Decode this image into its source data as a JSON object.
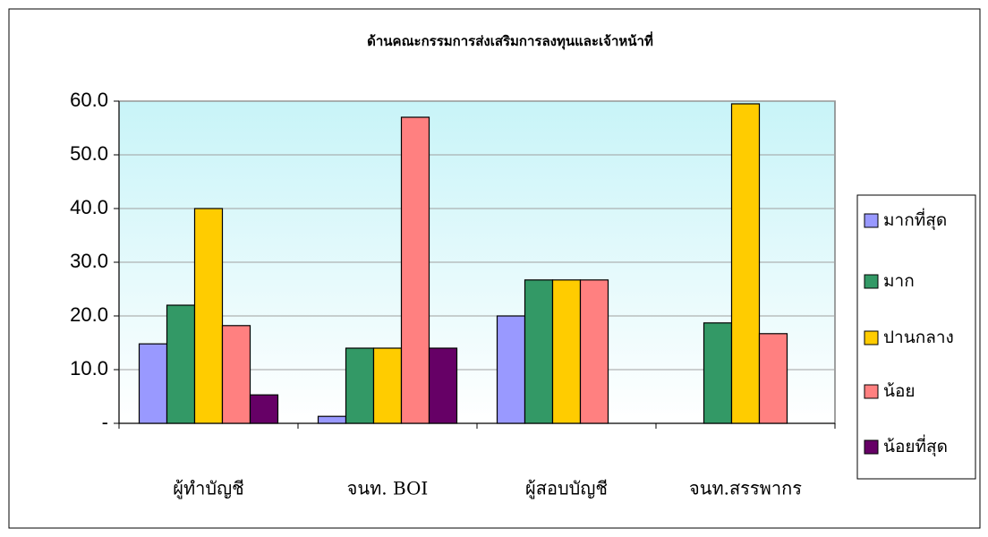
{
  "chart_data": {
    "type": "bar",
    "title": "ด้านคณะกรรมการส่งเสริมการลงทุนและเจ้าหน้าที่",
    "categories": [
      "ผู้ทำบัญชี",
      "จนท. BOI",
      "ผู้สอบบัญชี",
      "จนท.สรรพากร"
    ],
    "series": [
      {
        "name": "มากที่สุด",
        "color": "#9999ff",
        "values": [
          14.8,
          1.3,
          20.0,
          0
        ]
      },
      {
        "name": "มาก",
        "color": "#339966",
        "values": [
          22.0,
          14.0,
          26.7,
          18.7
        ]
      },
      {
        "name": "ปานกลาง",
        "color": "#ffcc00",
        "values": [
          40.0,
          14.0,
          26.7,
          59.5
        ]
      },
      {
        "name": "น้อย",
        "color": "#ff8080",
        "values": [
          18.2,
          57.0,
          26.7,
          16.7
        ]
      },
      {
        "name": "น้อยที่สุด",
        "color": "#660066",
        "values": [
          5.3,
          14.0,
          0,
          0
        ]
      }
    ],
    "ylim": [
      0,
      60
    ],
    "yticks": [
      {
        "value": 0,
        "label": "-"
      },
      {
        "value": 10,
        "label": "10.0"
      },
      {
        "value": 20,
        "label": "20.0"
      },
      {
        "value": 30,
        "label": "30.0"
      },
      {
        "value": 40,
        "label": "40.0"
      },
      {
        "value": 50,
        "label": "50.0"
      },
      {
        "value": 60,
        "label": "60.0"
      }
    ],
    "grid": true,
    "legend": "right"
  }
}
